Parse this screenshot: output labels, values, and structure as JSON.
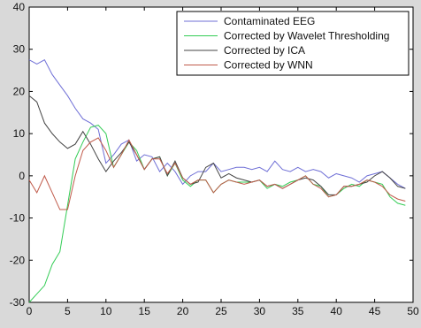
{
  "chart_data": {
    "type": "line",
    "xlim": [
      0,
      50
    ],
    "ylim": [
      -30,
      40
    ],
    "xticks": [
      0,
      5,
      10,
      15,
      20,
      25,
      30,
      35,
      40,
      45,
      50
    ],
    "yticks": [
      -30,
      -20,
      -10,
      0,
      10,
      20,
      30,
      40
    ],
    "xtick_labels": [
      "0",
      "5",
      "10",
      "15",
      "20",
      "25",
      "30",
      "35",
      "40",
      "45",
      "50"
    ],
    "ytick_labels": [
      "-30",
      "-20",
      "-10",
      "0",
      "10",
      "20",
      "30",
      "40"
    ],
    "grid": false,
    "legend_position": "top-right",
    "x": [
      0,
      1,
      2,
      3,
      4,
      5,
      6,
      7,
      8,
      9,
      10,
      11,
      12,
      13,
      14,
      15,
      16,
      17,
      18,
      19,
      20,
      21,
      22,
      23,
      24,
      25,
      26,
      27,
      28,
      29,
      30,
      31,
      32,
      33,
      34,
      35,
      36,
      37,
      38,
      39,
      40,
      41,
      42,
      43,
      44,
      45,
      46,
      47,
      48,
      49
    ],
    "series": [
      {
        "name": "Contaminated EEG",
        "color": "#6f6fd6",
        "values": [
          27.5,
          26.5,
          27.5,
          24,
          21.5,
          19,
          16,
          13.5,
          12.5,
          11,
          3,
          5,
          7.5,
          8.5,
          3.5,
          5,
          4.5,
          1,
          3,
          1,
          -2,
          0,
          1,
          1,
          3,
          1,
          1.5,
          2,
          2,
          1.5,
          2,
          1,
          3.5,
          1.5,
          1,
          2,
          1,
          1.5,
          1,
          -0.5,
          0.5,
          0,
          -0.5,
          -1.5,
          0,
          0.5,
          1,
          -0.5,
          -2,
          -3
        ]
      },
      {
        "name": "Corrected by Wavelet Thresholding",
        "color": "#33cc55",
        "values": [
          -30,
          -28,
          -26,
          -21,
          -18,
          -7,
          4,
          8,
          11.5,
          12,
          10,
          2,
          5,
          8,
          6,
          1.5,
          4,
          4.5,
          0,
          3,
          -1,
          -2.5,
          -1,
          -1,
          -4,
          -2,
          -1,
          -1.5,
          -1.5,
          -1.5,
          -1,
          -3,
          -2,
          -2.5,
          -1.5,
          -1,
          0,
          -2,
          -2.5,
          -5,
          -4.5,
          -3,
          -2,
          -2.5,
          -1,
          -1.5,
          -2,
          -5,
          -6.5,
          -7
        ]
      },
      {
        "name": "Corrected by ICA",
        "color": "#444444",
        "values": [
          19,
          17.5,
          12.5,
          10,
          8,
          6.5,
          7.5,
          10.5,
          7.5,
          4,
          1,
          3.5,
          5.5,
          8,
          5,
          1.5,
          4,
          4.5,
          0,
          3.5,
          -0.5,
          -2,
          -1.5,
          2,
          3,
          -0.5,
          0.5,
          -0.5,
          -1,
          -1.5,
          -1,
          -2.5,
          -2,
          -3,
          -2,
          -1,
          -0.5,
          -1,
          -2.5,
          -4.5,
          -4.5,
          -2.5,
          -2.5,
          -2,
          -1.5,
          0,
          1,
          -0.5,
          -2.5,
          -3
        ]
      },
      {
        "name": "Corrected by WNN",
        "color": "#c05a4a",
        "values": [
          -1,
          -4,
          0,
          -4,
          -8,
          -8,
          0,
          6,
          8,
          9,
          6,
          2,
          5,
          8.5,
          5,
          1.5,
          4,
          4,
          0.5,
          3,
          -0.5,
          -2,
          -1,
          -1,
          -4,
          -2,
          -1,
          -1.5,
          -2,
          -1.5,
          -1,
          -2.5,
          -2,
          -3,
          -2,
          -1,
          0,
          -2,
          -3,
          -5,
          -4.5,
          -2.5,
          -2.5,
          -2,
          -1,
          -1.5,
          -2.5,
          -4.5,
          -5.5,
          -6
        ]
      }
    ]
  }
}
